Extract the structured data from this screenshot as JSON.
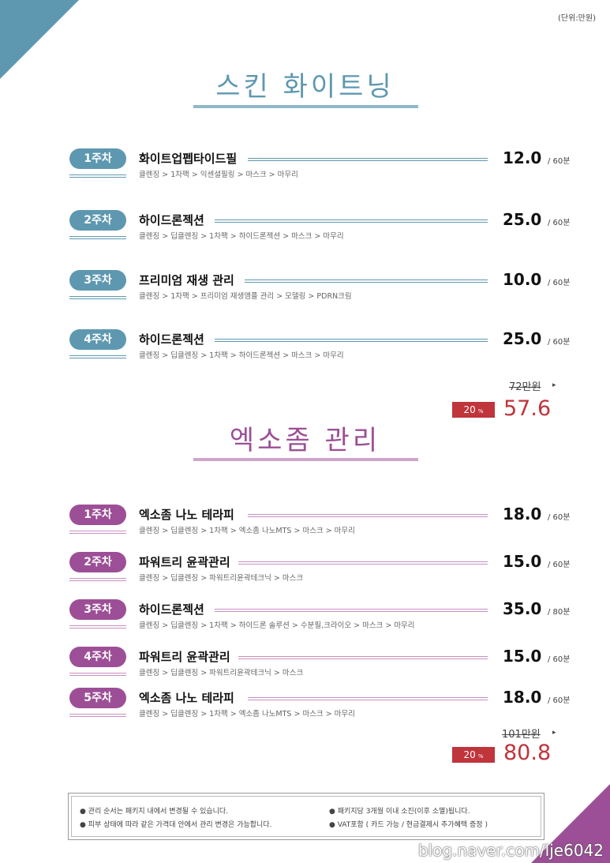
{
  "unit_note": "(단위:만원)",
  "section1": {
    "title": "스킨 화이트닝",
    "rows": [
      {
        "pill": "1주차",
        "name": "화이트업펩타이드필",
        "desc": "클렌징 > 1차팩 > 익센셜필링 > 마스크 > 마무리",
        "price": "12.0",
        "per": "/ 60분"
      },
      {
        "pill": "2주차",
        "name": "하이드론젝션",
        "desc": "클렌징 > 딥클렌징 > 1차팩 > 하이드론젝션 > 마스크 > 마무리",
        "price": "25.0",
        "per": "/ 60분"
      },
      {
        "pill": "3주차",
        "name": "프리미엄 재생 관리",
        "desc": "클렌징 > 1차팩 > 프리미엄 재생앰플 관리 > 모델링 > PDRN크림",
        "price": "10.0",
        "per": "/ 60분"
      },
      {
        "pill": "4주차",
        "name": "하이드론젝션",
        "desc": "클렌징 > 딥클렌징 > 1차팩 > 하이드론젝션 > 마스크 > 마무리",
        "price": "25.0",
        "per": "/ 60분"
      }
    ],
    "original_price": "72만원",
    "discount": "20",
    "discount_unit": "%",
    "final_price": "57.6"
  },
  "section2": {
    "title": "엑소좀 관리",
    "rows": [
      {
        "pill": "1주차",
        "name": "엑소좀 나노 테라피",
        "desc": "클렌징 > 딥클렌징 > 1차팩 > 엑소좀 나노MTS > 마스크 > 마무리",
        "price": "18.0",
        "per": "/ 60분"
      },
      {
        "pill": "2주차",
        "name": "파워트리 윤곽관리",
        "desc": "클렌징 > 딥클렌징 > 파워트리윤곽테크닉 > 마스크",
        "price": "15.0",
        "per": "/ 60분"
      },
      {
        "pill": "3주차",
        "name": "하이드론젝션",
        "desc": "클렌징 > 딥클렌징 > 1차팩 > 하이드론 솔루션 > 수분필,크라이오 > 마스크 > 마무리",
        "price": "35.0",
        "per": "/ 80분"
      },
      {
        "pill": "4주차",
        "name": "파워트리 윤곽관리",
        "desc": "클렌징 > 딥클렌징 > 파워트리윤곽테크닉 > 마스크",
        "price": "15.0",
        "per": "/ 60분"
      },
      {
        "pill": "5주차",
        "name": "엑소좀 나노 테라피",
        "desc": "클렌징 > 딥클렌징 > 1차팩 > 엑소좀 나노MTS > 마스크 > 마무리",
        "price": "18.0",
        "per": "/ 60분"
      }
    ],
    "original_price": "101만원",
    "discount": "20",
    "discount_unit": "%",
    "final_price": "80.8"
  },
  "notes": {
    "n1": "● 관리 순서는 패키지 내에서 변경될 수 있습니다.",
    "n2": "● 패키지당 3개월 이내 소진(이후 소멸)됩니다.",
    "n3": "● 피부 상태에 따라 같은 가격대 안에서 관리 변경은 가능합니다.",
    "n4": "● VAT포함 ( 카드 가능 / 현금결제시 추가혜택 증정 )"
  },
  "watermark": "blog.naver.com/lje6042",
  "colors": {
    "blue": "#5e98b0",
    "purple": "#9c4f96",
    "discount_red": "#c0343b"
  }
}
